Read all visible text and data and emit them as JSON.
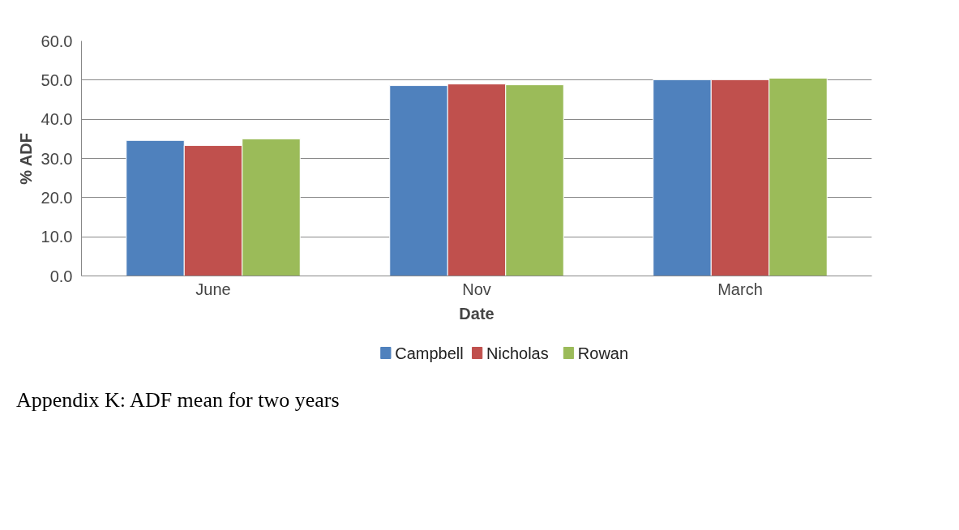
{
  "chart_data": {
    "type": "bar",
    "xlabel": "Date",
    "ylabel": "% ADF",
    "categories": [
      "June",
      "Nov",
      "March"
    ],
    "series": [
      {
        "name": "Campbell",
        "color": "#4f81bd",
        "values": [
          34.6,
          48.6,
          50.1
        ]
      },
      {
        "name": "Nicholas",
        "color": "#c0504d",
        "values": [
          33.3,
          49.0,
          50.1
        ]
      },
      {
        "name": "Rowan",
        "color": "#9bbb59",
        "values": [
          35.0,
          48.8,
          50.5
        ]
      }
    ],
    "ylim": [
      0,
      60
    ],
    "yticks": [
      {
        "value": 0,
        "label": "0.0"
      },
      {
        "value": 10,
        "label": "10.0"
      },
      {
        "value": 20,
        "label": "20.0"
      },
      {
        "value": 30,
        "label": "30.0"
      },
      {
        "value": 40,
        "label": "40.0"
      },
      {
        "value": 50,
        "label": "50.0"
      },
      {
        "value": 60,
        "label": "60.0"
      }
    ],
    "grid": "y",
    "legend": "bottom",
    "annotations": [
      "Appendix K: ADF mean for two years"
    ]
  }
}
